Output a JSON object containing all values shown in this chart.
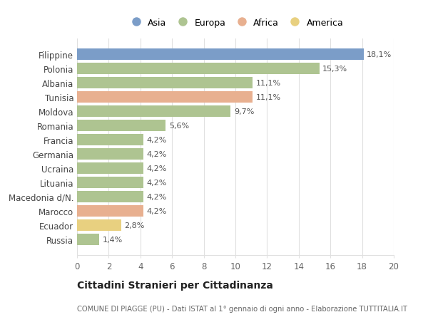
{
  "categories": [
    "Filippine",
    "Polonia",
    "Albania",
    "Tunisia",
    "Moldova",
    "Romania",
    "Francia",
    "Germania",
    "Ucraina",
    "Lituania",
    "Macedonia d/N.",
    "Marocco",
    "Ecuador",
    "Russia"
  ],
  "values": [
    18.1,
    15.3,
    11.1,
    11.1,
    9.7,
    5.6,
    4.2,
    4.2,
    4.2,
    4.2,
    4.2,
    4.2,
    2.8,
    1.4
  ],
  "labels": [
    "18,1%",
    "15,3%",
    "11,1%",
    "11,1%",
    "9,7%",
    "5,6%",
    "4,2%",
    "4,2%",
    "4,2%",
    "4,2%",
    "4,2%",
    "4,2%",
    "2,8%",
    "1,4%"
  ],
  "continents": [
    "Asia",
    "Europa",
    "Europa",
    "Africa",
    "Europa",
    "Europa",
    "Europa",
    "Europa",
    "Europa",
    "Europa",
    "Europa",
    "Africa",
    "America",
    "Europa"
  ],
  "colors": {
    "Asia": "#7b9dc8",
    "Europa": "#aec491",
    "Africa": "#e8b090",
    "America": "#e8d080"
  },
  "legend_order": [
    "Asia",
    "Europa",
    "Africa",
    "America"
  ],
  "title": "Cittadini Stranieri per Cittadinanza",
  "subtitle": "COMUNE DI PIAGGE (PU) - Dati ISTAT al 1° gennaio di ogni anno - Elaborazione TUTTITALIA.IT",
  "xlim": [
    0,
    20
  ],
  "xticks": [
    0,
    2,
    4,
    6,
    8,
    10,
    12,
    14,
    16,
    18,
    20
  ],
  "bg_color": "#ffffff",
  "grid_color": "#e0e0e0"
}
